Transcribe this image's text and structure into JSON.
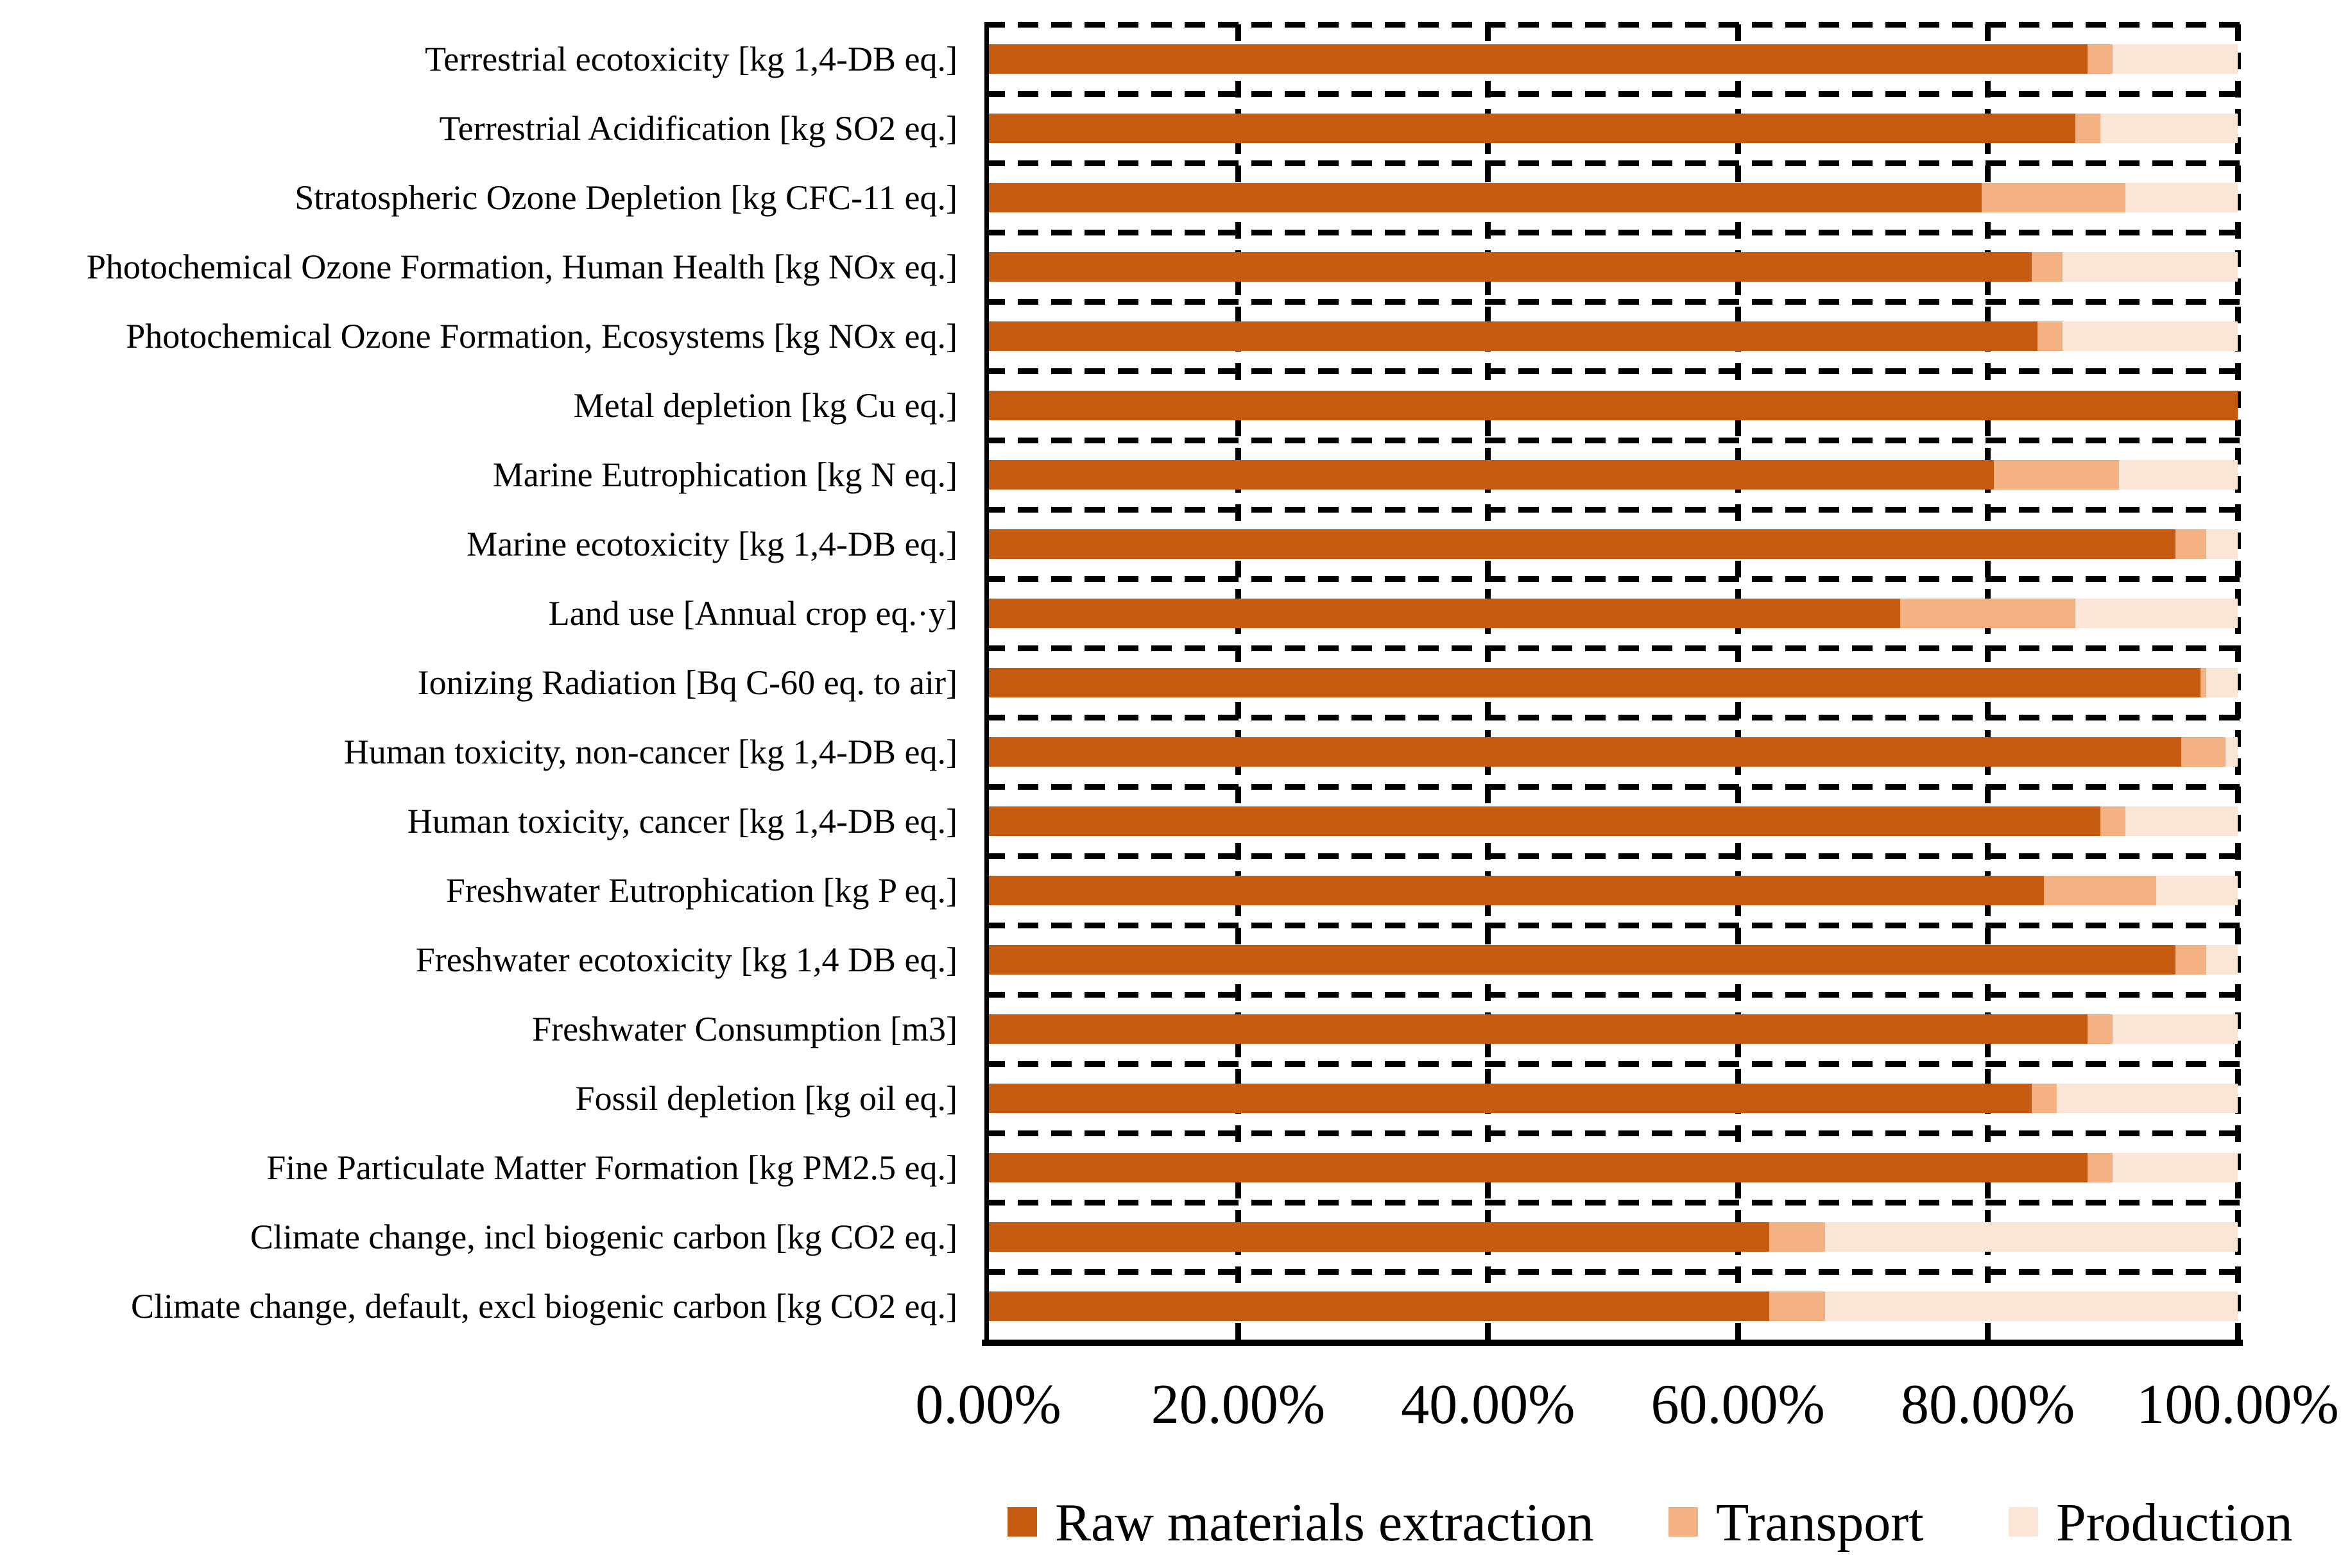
{
  "chart_data": {
    "type": "bar",
    "orientation": "horizontal",
    "stacked": true,
    "unit": "percent of total impact",
    "title": "",
    "xlabel": "",
    "ylabel": "",
    "xlim": [
      0,
      100
    ],
    "grid": "dashed",
    "legend_position": "bottom",
    "x_tick_labels": [
      "0.00%",
      "20.00%",
      "40.00%",
      "60.00%",
      "80.00%",
      "100.00%"
    ],
    "categories": [
      "Terrestrial ecotoxicity [kg 1,4-DB eq.]",
      "Terrestrial Acidification [kg SO2 eq.]",
      "Stratospheric Ozone Depletion [kg CFC-11 eq.]",
      "Photochemical Ozone Formation, Human Health [kg NOx eq.]",
      "Photochemical Ozone Formation, Ecosystems [kg NOx eq.]",
      "Metal depletion [kg Cu eq.]",
      "Marine Eutrophication [kg N eq.]",
      "Marine ecotoxicity [kg 1,4-DB eq.]",
      "Land use [Annual crop eq.·y]",
      "Ionizing Radiation [Bq C-60 eq. to air]",
      "Human toxicity, non-cancer [kg 1,4-DB eq.]",
      "Human toxicity, cancer [kg 1,4-DB eq.]",
      "Freshwater Eutrophication [kg P eq.]",
      "Freshwater ecotoxicity [kg 1,4 DB eq.]",
      "Freshwater Consumption [m3]",
      "Fossil depletion [kg oil eq.]",
      "Fine Particulate Matter Formation [kg PM2.5 eq.]",
      "Climate change, incl biogenic carbon [kg CO2 eq.]",
      "Climate change, default, excl biogenic carbon [kg CO2 eq.]"
    ],
    "series": [
      {
        "name": "Raw materials extraction",
        "color": "#C55A11",
        "values": [
          88,
          87,
          79.5,
          83.5,
          84,
          100,
          80.5,
          95,
          73,
          97,
          95.5,
          89,
          84.5,
          95,
          88,
          83.5,
          88,
          62.5,
          62.5
        ]
      },
      {
        "name": "Transport",
        "color": "#F4B183",
        "values": [
          2,
          2,
          11.5,
          2.5,
          2,
          0,
          10,
          2.5,
          14,
          0.5,
          3.5,
          2,
          9,
          2.5,
          2,
          2,
          2,
          4.5,
          4.5
        ]
      },
      {
        "name": "Production",
        "color": "#FBE5D6",
        "values": [
          10,
          11,
          9,
          14,
          14,
          0,
          9.5,
          2.5,
          13,
          2.5,
          1,
          9,
          6.5,
          2.5,
          10,
          14.5,
          10,
          33,
          33
        ]
      }
    ]
  }
}
